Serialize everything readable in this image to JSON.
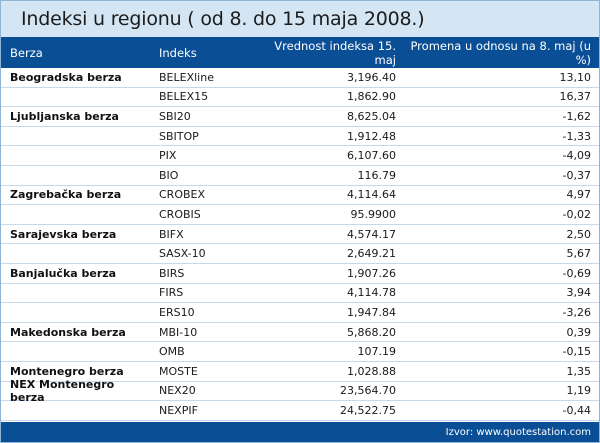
{
  "title": "Indeksi u regionu ( od 8. do 15 maja 2008.)",
  "headers": {
    "exchange": "Berza",
    "index": "Indeks",
    "value": "Vrednost indeksa 15. maj",
    "change": "Promena u odnosu na 8. maj (u %)"
  },
  "rows": [
    {
      "exchange": "Beogradska berza",
      "index": "BELEXline",
      "value": "3,196.40",
      "change": "13,10"
    },
    {
      "exchange": "",
      "index": "BELEX15",
      "value": "1,862.90",
      "change": "16,37"
    },
    {
      "exchange": "Ljubljanska berza",
      "index": "SBI20",
      "value": "8,625.04",
      "change": "-1,62"
    },
    {
      "exchange": "",
      "index": "SBITOP",
      "value": "1,912.48",
      "change": "-1,33"
    },
    {
      "exchange": "",
      "index": "PIX",
      "value": "6,107.60",
      "change": "-4,09"
    },
    {
      "exchange": "",
      "index": "BIO",
      "value": "116.79",
      "change": "-0,37"
    },
    {
      "exchange": "Zagrebačka berza",
      "index": "CROBEX",
      "value": "4,114.64",
      "change": "4,97"
    },
    {
      "exchange": "",
      "index": "CROBIS",
      "value": "95.9900",
      "change": "-0,02"
    },
    {
      "exchange": "Sarajevska berza",
      "index": "BIFX",
      "value": "4,574.17",
      "change": "2,50"
    },
    {
      "exchange": "",
      "index": "SASX-10",
      "value": "2,649.21",
      "change": "5,67"
    },
    {
      "exchange": "Banjalučka berza",
      "index": "BIRS",
      "value": "1,907.26",
      "change": "-0,69"
    },
    {
      "exchange": "",
      "index": "FIRS",
      "value": "4,114.78",
      "change": "3,94"
    },
    {
      "exchange": "",
      "index": "ERS10",
      "value": "1,947.84",
      "change": "-3,26"
    },
    {
      "exchange": "Makedonska berza",
      "index": "MBI-10",
      "value": "5,868.20",
      "change": "0,39"
    },
    {
      "exchange": "",
      "index": "OMB",
      "value": "107.19",
      "change": "-0,15"
    },
    {
      "exchange": "Montenegro berza",
      "index": "MOSTE",
      "value": "1,028.88",
      "change": "1,35"
    },
    {
      "exchange": "NEX Montenegro berza",
      "index": "NEX20",
      "value": "23,564.70",
      "change": "1,19"
    },
    {
      "exchange": "",
      "index": "NEXPIF",
      "value": "24,522.75",
      "change": "-0,44"
    }
  ],
  "footer": "Izvor: www.quotestation.com",
  "colors": {
    "title_bg": "#d4e5f4",
    "header_bg": "#0a4f96",
    "row_divider": "#c6d9ec"
  }
}
